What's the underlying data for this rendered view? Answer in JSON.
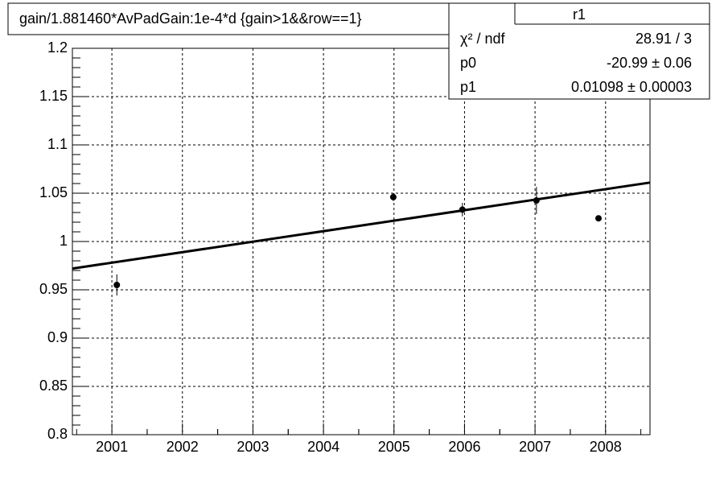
{
  "chart_data": {
    "type": "scatter",
    "title": "gain/1.881460*AvPadGain:1e-4*d  {gain>1&&row==1}",
    "x": [
      2001.07,
      2004.99,
      2005.97,
      2007.02,
      2007.9
    ],
    "values": [
      0.955,
      1.046,
      1.033,
      1.0425,
      1.024
    ],
    "errors": [
      0.011,
      0.004,
      0.007,
      0.014,
      0.002
    ],
    "color": "#000000",
    "fit": {
      "x": [
        2000.44,
        2008.63
      ],
      "y": [
        0.972,
        1.061
      ]
    },
    "xlim": [
      2000.44,
      2008.63
    ],
    "xticks": [
      2001,
      2002,
      2003,
      2004,
      2005,
      2006,
      2007,
      2008
    ],
    "ylim": [
      0.8,
      1.2
    ],
    "yticks": [
      0.8,
      0.85,
      0.9,
      0.95,
      1,
      1.05,
      1.1,
      1.15,
      1.2
    ],
    "grid": true,
    "stats": {
      "title": "r1",
      "rows": [
        {
          "label": "χ² / ndf",
          "value": "28.91 / 3"
        },
        {
          "label": "p0",
          "value": "-20.99 ± 0.06"
        },
        {
          "label": "p1",
          "value": "0.01098 ± 0.00003"
        }
      ]
    }
  }
}
